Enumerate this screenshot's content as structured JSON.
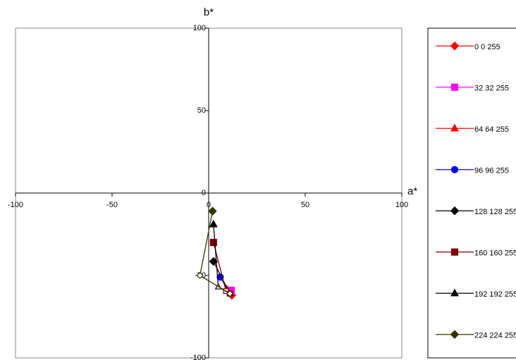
{
  "chart_data": {
    "type": "line",
    "xlabel": "a*",
    "ylabel": "b*",
    "xlim": [
      -100,
      100
    ],
    "ylim": [
      -100,
      100
    ],
    "xticks": [
      -100,
      -50,
      0,
      50,
      100
    ],
    "yticks": [
      100,
      50,
      0,
      -50,
      -100
    ],
    "series": [
      {
        "name": "0 0 255",
        "color": "#ff0000",
        "marker": "diamond",
        "x": [
          12,
          11
        ],
        "y": [
          -62,
          -61
        ]
      },
      {
        "name": "32 32 255",
        "color": "#ff00ff",
        "marker": "square",
        "x": [
          11.7,
          11
        ],
        "y": [
          -59,
          -61
        ]
      },
      {
        "name": "64 64 255",
        "color": "#ff0000",
        "marker": "triangle",
        "x": [
          9.5,
          11
        ],
        "y": [
          -58.5,
          -61
        ]
      },
      {
        "name": "96 96 255",
        "color": "#0000ff",
        "marker": "circle",
        "x": [
          6,
          11
        ],
        "y": [
          -51,
          -61
        ]
      },
      {
        "name": "128 128 255",
        "color": "#000000",
        "marker": "diamond",
        "x": [
          2.5,
          11
        ],
        "y": [
          -41.5,
          -61
        ]
      },
      {
        "name": "160 160 255",
        "color": "#800000",
        "marker": "square",
        "x": [
          2.5,
          9,
          11
        ],
        "y": [
          -30,
          -59.5,
          -61
        ]
      },
      {
        "name": "192 192 255",
        "color": "#000000",
        "marker": "triangle",
        "x": [
          2.5,
          5,
          11
        ],
        "y": [
          -19,
          -57,
          -61
        ]
      },
      {
        "name": "224 224 255",
        "color": "#333300",
        "marker": "diamond",
        "x": [
          2,
          -4.5,
          11
        ],
        "y": [
          -11,
          -50,
          -61
        ]
      }
    ]
  }
}
